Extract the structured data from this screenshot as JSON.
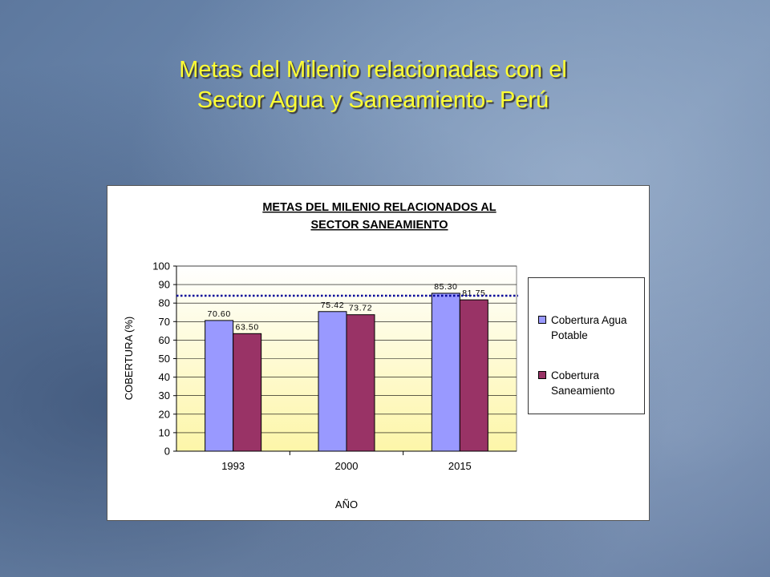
{
  "slide": {
    "title_line1": "Metas del Milenio relacionadas con el",
    "title_line2": "Sector Agua y Saneamiento- Perú"
  },
  "colors": {
    "title_text": "#ffff33",
    "series_agua": "#9999ff",
    "series_saneamiento": "#993366",
    "goal_line": "#000099",
    "plot_bg_top": "#ffffff",
    "plot_bg_bottom": "#fdf6a8"
  },
  "chart_data": {
    "type": "bar",
    "title_line1": "METAS DEL MILENIO RELACIONADOS AL",
    "title_line2": "SECTOR SANEAMIENTO",
    "xlabel": "AÑO",
    "ylabel": "COBERTURA (%)",
    "ylim": [
      0,
      100
    ],
    "yticks": [
      0,
      10,
      20,
      30,
      40,
      50,
      60,
      70,
      80,
      90,
      100
    ],
    "categories": [
      "1993",
      "2000",
      "2015"
    ],
    "series": [
      {
        "name": "Cobertura Agua Potable",
        "values": [
          70.6,
          75.42,
          85.3
        ],
        "labels": [
          "70.60",
          "75.42",
          "85.30"
        ]
      },
      {
        "name": "Cobertura Saneamiento",
        "values": [
          63.5,
          73.72,
          81.75
        ],
        "labels": [
          "63.50",
          "73.72",
          "81.75"
        ]
      }
    ],
    "reference_line": {
      "value": 84,
      "style": "dotted"
    },
    "grid": true,
    "legend_position": "right"
  }
}
